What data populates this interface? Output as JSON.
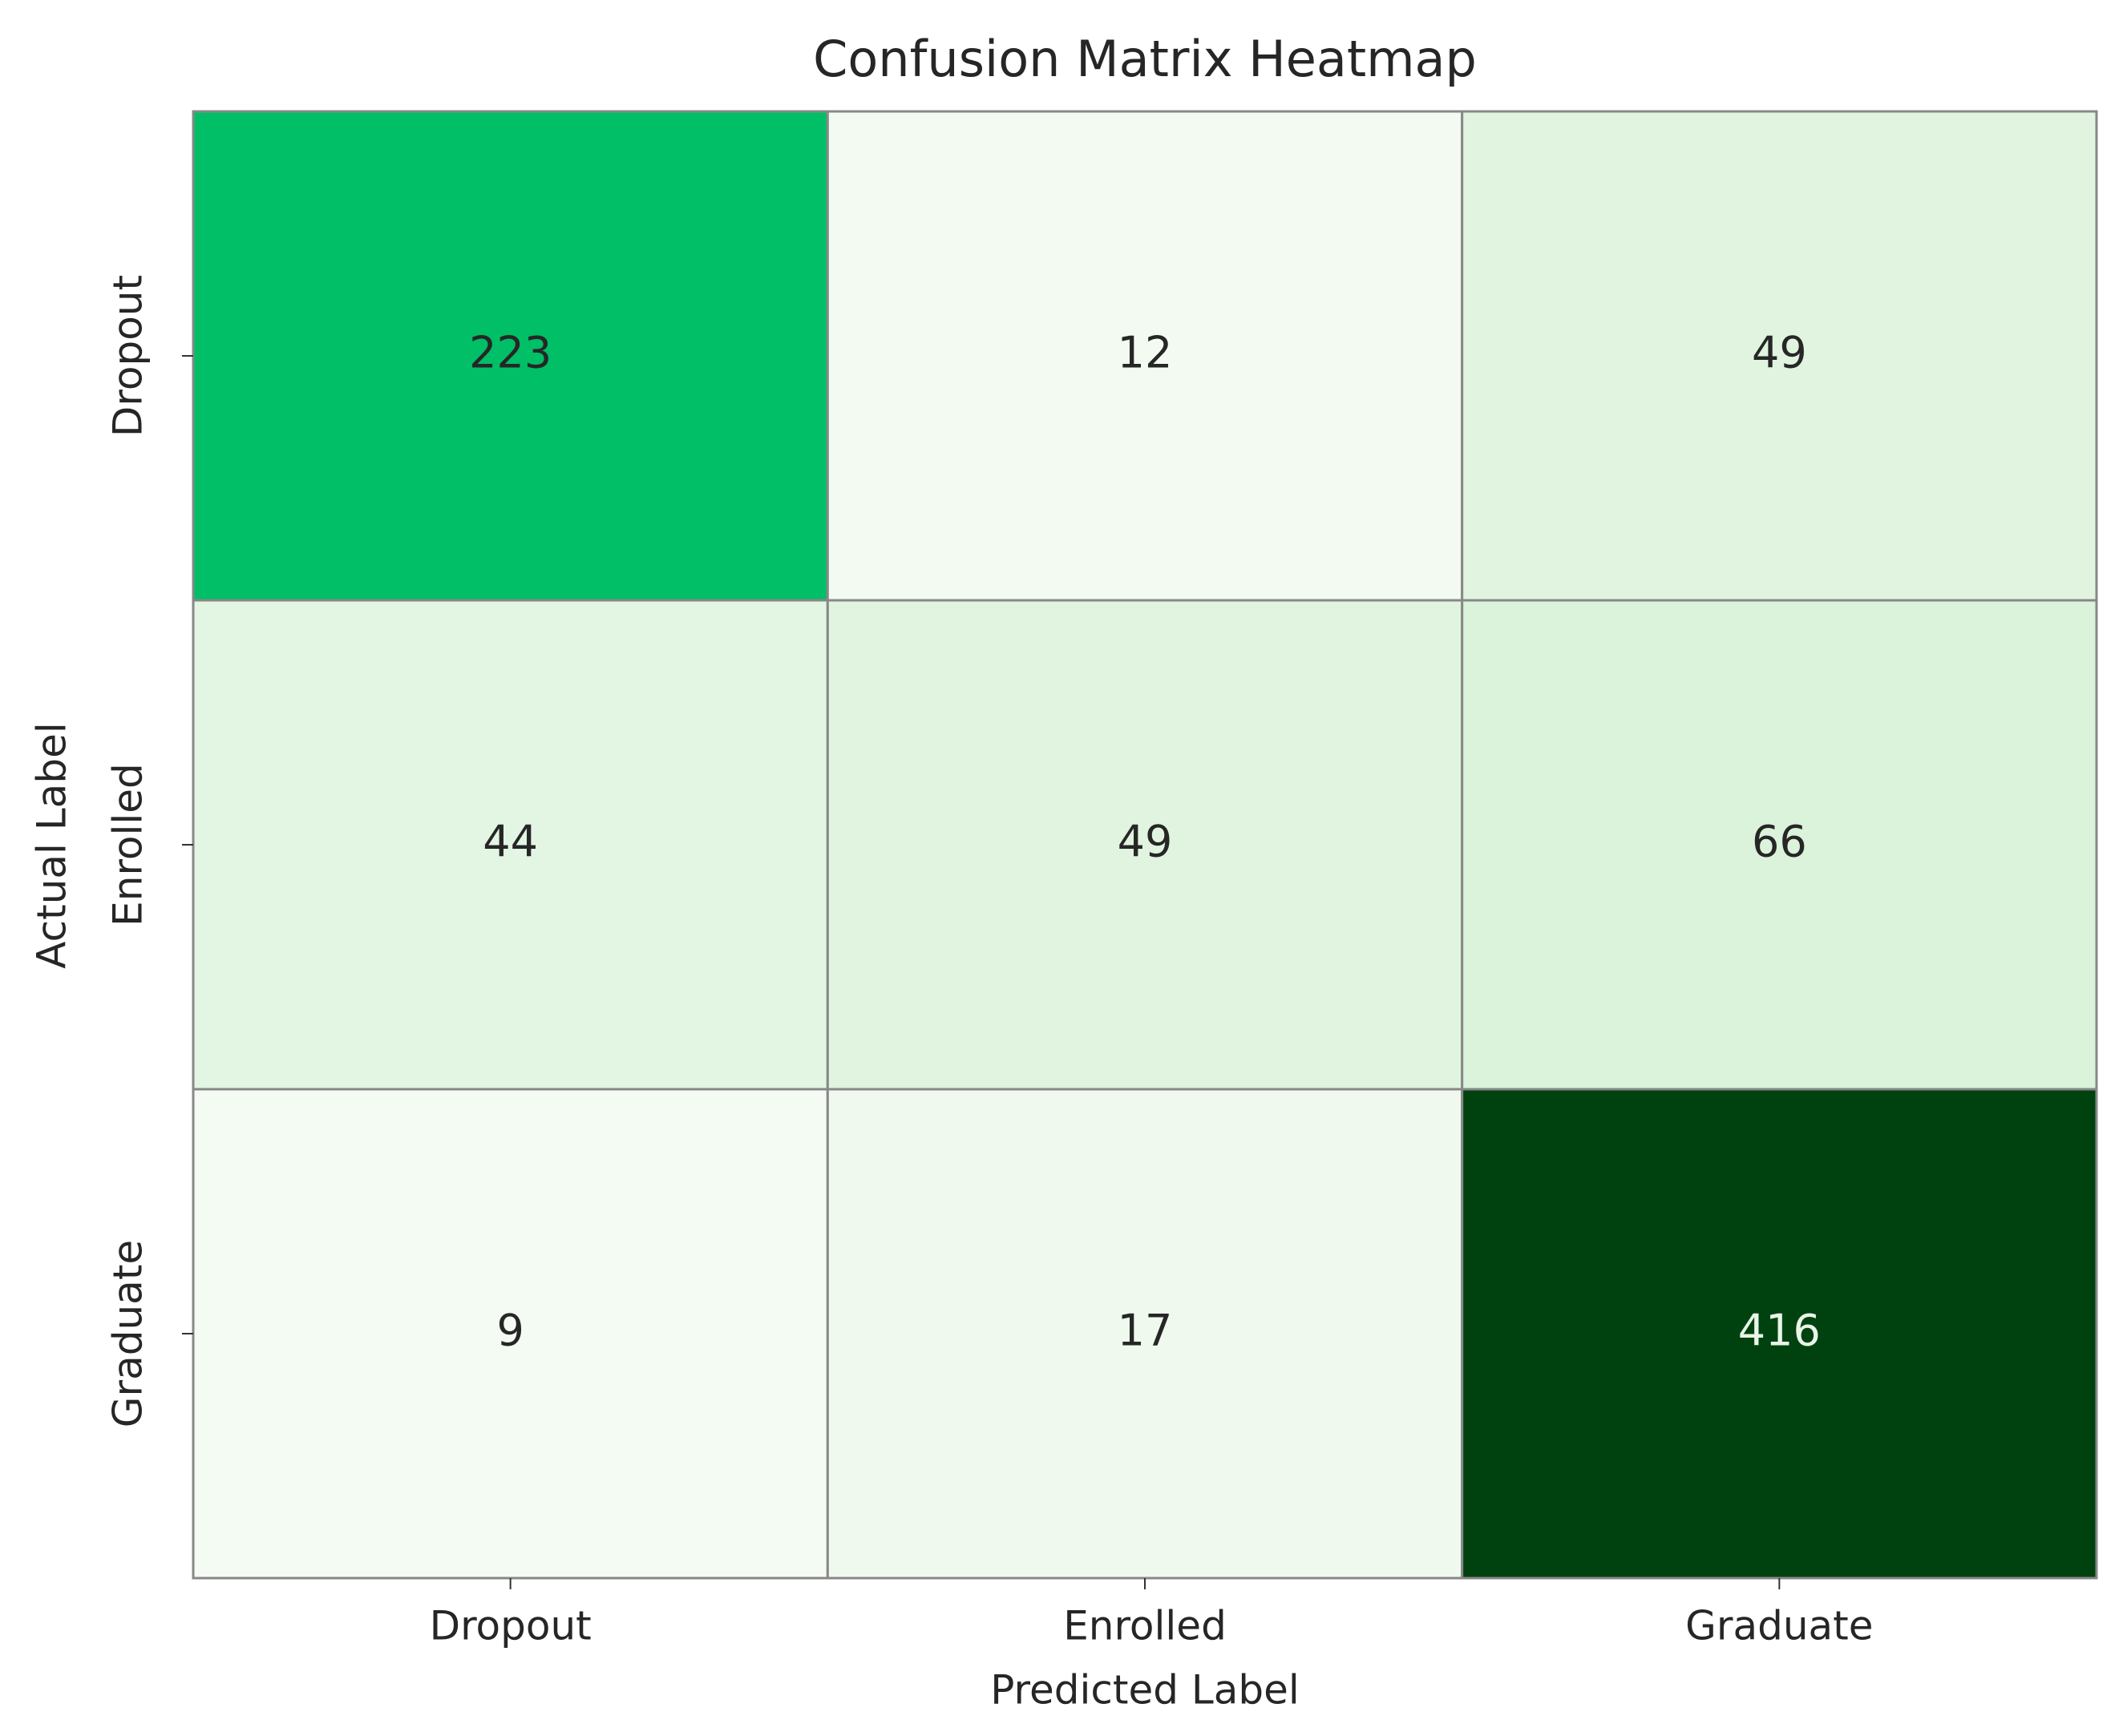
{
  "chart_data": {
    "type": "heatmap",
    "title": "Confusion Matrix Heatmap",
    "x_label": "Predicted Label",
    "y_label": "Actual Label",
    "x_categories": [
      "Dropout",
      "Enrolled",
      "Graduate"
    ],
    "y_categories": [
      "Dropout",
      "Enrolled",
      "Graduate"
    ],
    "values": [
      [
        223,
        12,
        49
      ],
      [
        44,
        49,
        66
      ],
      [
        9,
        17,
        416
      ]
    ],
    "cell_colors": [
      [
        "#00bf66",
        "#f2faf1",
        "#e0f4e0"
      ],
      [
        "#e3f5e3",
        "#e0f4e0",
        "#dbf2db"
      ],
      [
        "#f4fbf2",
        "#eff9ee",
        "#00420f"
      ]
    ],
    "grid_color": "#888888"
  }
}
